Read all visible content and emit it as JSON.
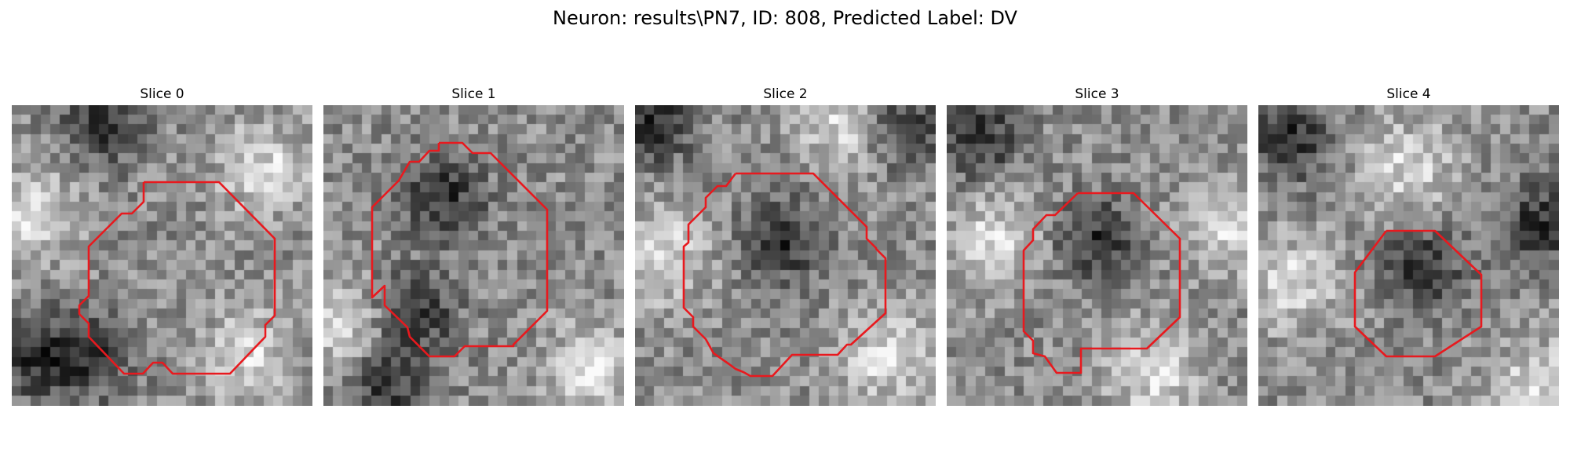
{
  "figure": {
    "title": "Neuron: results\\PN7, ID: 808, Predicted Label: DV",
    "contour_color": "#e8191e"
  },
  "panels": [
    {
      "title": "Slice 0",
      "seed": 11,
      "dark_lobes": [
        [
          0.3,
          0.05
        ],
        [
          0.25,
          0.85
        ],
        [
          0.05,
          0.85
        ]
      ],
      "bright_lobes": [
        [
          0.05,
          0.35
        ],
        [
          0.85,
          0.2
        ],
        [
          0.8,
          0.85
        ]
      ]
    },
    {
      "title": "Slice 1",
      "seed": 23,
      "dark_lobes": [
        [
          0.4,
          0.3
        ],
        [
          0.3,
          0.7
        ],
        [
          0.2,
          0.95
        ]
      ],
      "bright_lobes": [
        [
          0.9,
          0.9
        ],
        [
          0.05,
          0.75
        ]
      ]
    },
    {
      "title": "Slice 2",
      "seed": 37,
      "dark_lobes": [
        [
          0.05,
          0.05
        ],
        [
          0.9,
          0.05
        ],
        [
          0.5,
          0.45
        ]
      ],
      "bright_lobes": [
        [
          0.08,
          0.5
        ],
        [
          0.7,
          0.05
        ],
        [
          0.85,
          0.85
        ]
      ]
    },
    {
      "title": "Slice 3",
      "seed": 53,
      "dark_lobes": [
        [
          0.1,
          0.1
        ],
        [
          0.5,
          0.45
        ]
      ],
      "bright_lobes": [
        [
          0.15,
          0.45
        ],
        [
          0.7,
          0.9
        ],
        [
          0.95,
          0.4
        ]
      ]
    },
    {
      "title": "Slice 4",
      "seed": 71,
      "dark_lobes": [
        [
          0.1,
          0.1
        ],
        [
          0.55,
          0.55
        ],
        [
          0.95,
          0.4
        ]
      ],
      "bright_lobes": [
        [
          0.5,
          0.2
        ],
        [
          0.95,
          0.95
        ],
        [
          0.1,
          0.6
        ]
      ]
    }
  ]
}
